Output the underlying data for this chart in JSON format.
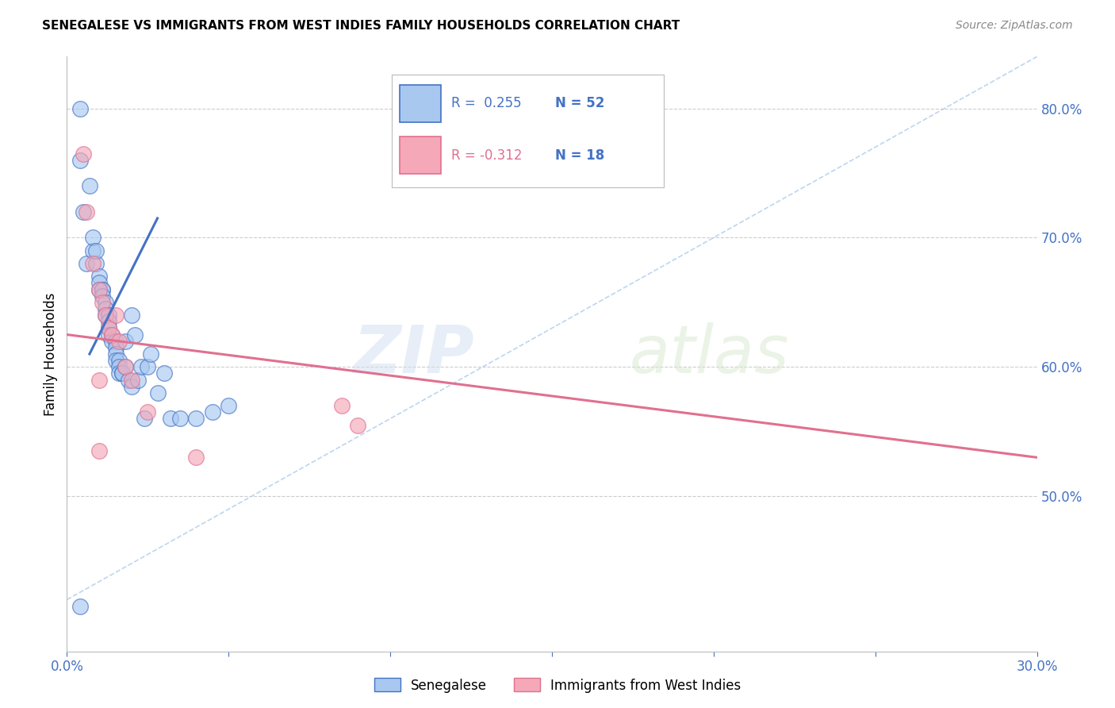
{
  "title": "SENEGALESE VS IMMIGRANTS FROM WEST INDIES FAMILY HOUSEHOLDS CORRELATION CHART",
  "source": "Source: ZipAtlas.com",
  "ylabel": "Family Households",
  "legend_label1": "Senegalese",
  "legend_label2": "Immigrants from West Indies",
  "R1": 0.255,
  "N1": 52,
  "R2": -0.312,
  "N2": 18,
  "xmin": 0.0,
  "xmax": 0.3,
  "ymin": 0.38,
  "ymax": 0.84,
  "right_yticks": [
    0.5,
    0.6,
    0.7,
    0.8
  ],
  "right_ytick_labels": [
    "50.0%",
    "60.0%",
    "70.0%",
    "80.0%"
  ],
  "color_blue": "#A8C8F0",
  "color_pink": "#F4A8B8",
  "line_blue": "#4472C4",
  "line_pink": "#E07090",
  "color_diag": "#AACCEE",
  "senegalese_x": [
    0.004,
    0.004,
    0.005,
    0.006,
    0.007,
    0.008,
    0.008,
    0.009,
    0.009,
    0.01,
    0.01,
    0.01,
    0.011,
    0.011,
    0.011,
    0.012,
    0.012,
    0.012,
    0.013,
    0.013,
    0.013,
    0.013,
    0.014,
    0.014,
    0.015,
    0.015,
    0.015,
    0.015,
    0.016,
    0.016,
    0.016,
    0.017,
    0.017,
    0.018,
    0.018,
    0.019,
    0.02,
    0.02,
    0.021,
    0.022,
    0.023,
    0.024,
    0.025,
    0.026,
    0.028,
    0.03,
    0.032,
    0.035,
    0.04,
    0.045,
    0.05,
    0.004
  ],
  "senegalese_y": [
    0.8,
    0.76,
    0.72,
    0.68,
    0.74,
    0.69,
    0.7,
    0.68,
    0.69,
    0.67,
    0.665,
    0.66,
    0.66,
    0.66,
    0.655,
    0.65,
    0.645,
    0.64,
    0.64,
    0.635,
    0.63,
    0.625,
    0.625,
    0.62,
    0.62,
    0.615,
    0.61,
    0.605,
    0.605,
    0.6,
    0.595,
    0.595,
    0.595,
    0.6,
    0.62,
    0.59,
    0.585,
    0.64,
    0.625,
    0.59,
    0.6,
    0.56,
    0.6,
    0.61,
    0.58,
    0.595,
    0.56,
    0.56,
    0.56,
    0.565,
    0.57,
    0.415
  ],
  "westindies_x": [
    0.005,
    0.006,
    0.008,
    0.01,
    0.011,
    0.012,
    0.013,
    0.014,
    0.015,
    0.016,
    0.018,
    0.02,
    0.025,
    0.04,
    0.085,
    0.09,
    0.01,
    0.01
  ],
  "westindies_y": [
    0.765,
    0.72,
    0.68,
    0.66,
    0.65,
    0.64,
    0.63,
    0.625,
    0.64,
    0.62,
    0.6,
    0.59,
    0.565,
    0.53,
    0.57,
    0.555,
    0.59,
    0.535
  ],
  "background_color": "#FFFFFF",
  "watermark_zip": "ZIP",
  "watermark_atlas": "atlas",
  "title_fontsize": 11,
  "axis_label_color": "#4472C4",
  "blue_line_xstart": 0.007,
  "blue_line_xend": 0.028,
  "blue_line_ystart": 0.61,
  "blue_line_yend": 0.715,
  "pink_line_xstart": 0.0,
  "pink_line_xend": 0.3,
  "pink_line_ystart": 0.625,
  "pink_line_yend": 0.53
}
